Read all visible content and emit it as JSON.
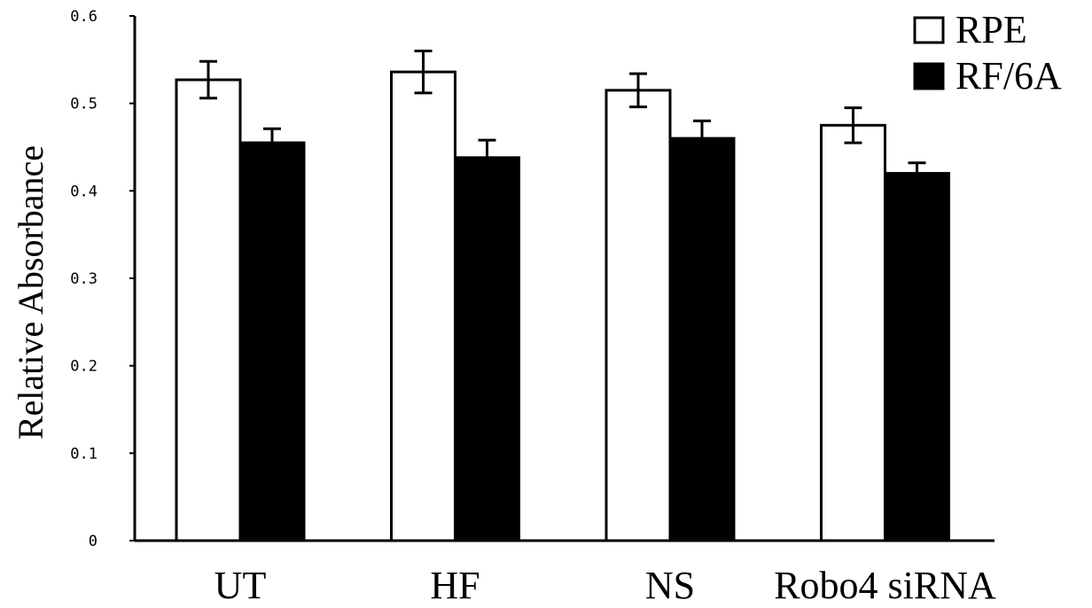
{
  "chart_data": {
    "type": "bar",
    "title": "",
    "xlabel": "",
    "ylabel": "Relative Absorbance",
    "ylim": [
      0,
      0.6
    ],
    "yticks": [
      0,
      0.1,
      0.2,
      0.3,
      0.4,
      0.5,
      0.6
    ],
    "ytick_labels": [
      "0",
      "0.1",
      "0.2",
      "0.3",
      "0.4",
      "0.5",
      "0.6"
    ],
    "categories": [
      "UT",
      "HF",
      "NS",
      "Robo4 siRNA"
    ],
    "series": [
      {
        "name": "RPE",
        "values": [
          0.527,
          0.536,
          0.515,
          0.475
        ],
        "errors": [
          0.021,
          0.024,
          0.019,
          0.02
        ],
        "color": "#ffffff"
      },
      {
        "name": "RF/6A",
        "values": [
          0.455,
          0.438,
          0.46,
          0.42
        ],
        "errors": [
          0.016,
          0.02,
          0.02,
          0.012
        ],
        "color": "#000000"
      }
    ],
    "grid": false,
    "legend_position": "top-right"
  }
}
